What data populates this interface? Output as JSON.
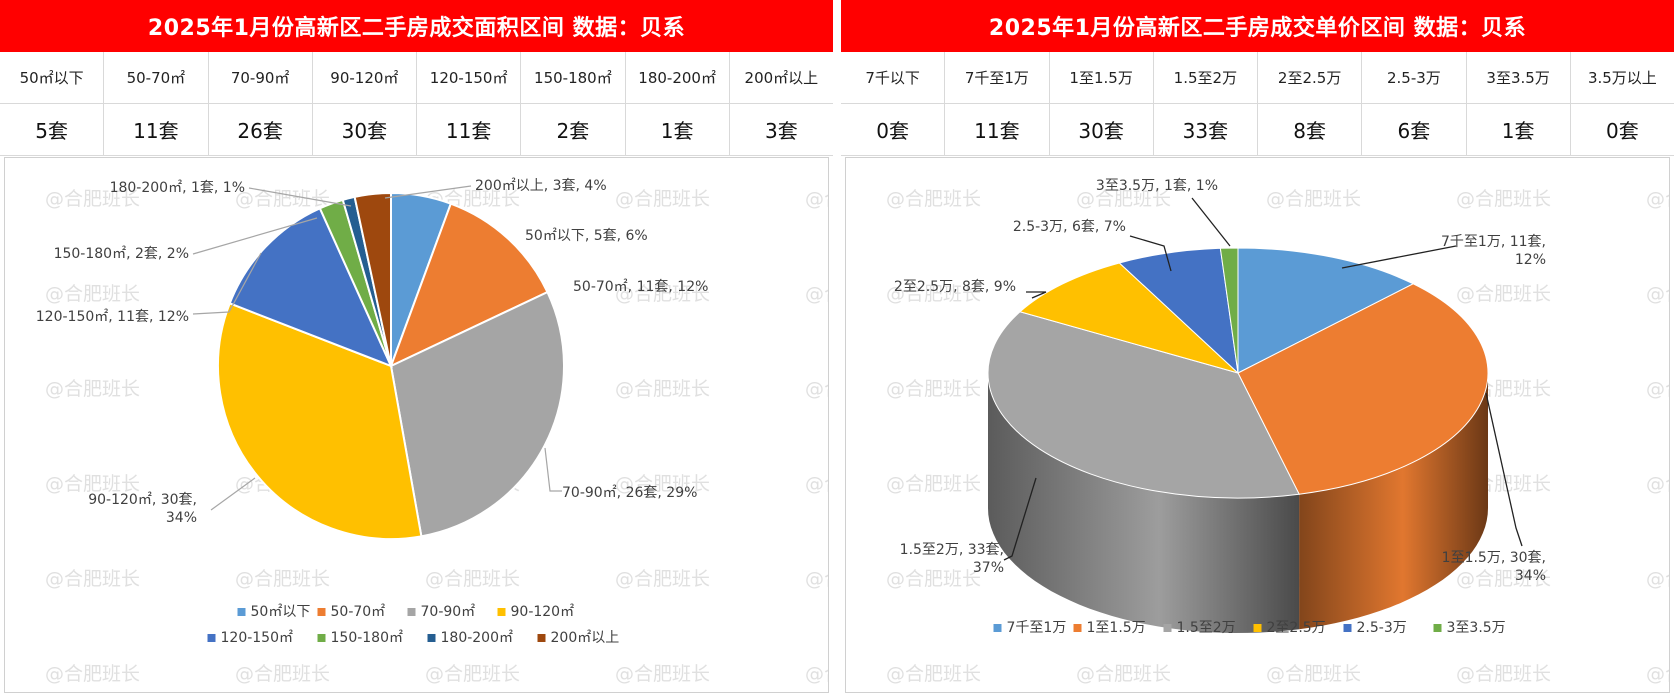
{
  "watermark": "@合肥班长",
  "left": {
    "title": "2025年1月份高新区二手房成交面积区间 数据：贝系",
    "headers": [
      "50㎡以下",
      "50-70㎡",
      "70-90㎡",
      "90-120㎡",
      "120-150㎡",
      "150-180㎡",
      "180-200㎡",
      "200㎡以上"
    ],
    "values": [
      "5套",
      "11套",
      "26套",
      "30套",
      "11套",
      "2套",
      "1套",
      "3套"
    ]
  },
  "right": {
    "title": "2025年1月份高新区二手房成交单价区间 数据：贝系",
    "headers": [
      "7千以下",
      "7千至1万",
      "1至1.5万",
      "1.5至2万",
      "2至2.5万",
      "2.5-3万",
      "3至3.5万",
      "3.5万以上"
    ],
    "values": [
      "0套",
      "11套",
      "30套",
      "33套",
      "8套",
      "6套",
      "1套",
      "0套"
    ]
  },
  "chart_data": [
    {
      "type": "pie",
      "categories": [
        "50㎡以下",
        "50-70㎡",
        "70-90㎡",
        "90-120㎡",
        "120-150㎡",
        "150-180㎡",
        "180-200㎡",
        "200㎡以上"
      ],
      "values": [
        5,
        11,
        26,
        30,
        11,
        2,
        1,
        3
      ],
      "data_labels": [
        "50㎡以下, 5套, 6%",
        "50-70㎡, 11套, 12%",
        "70-90㎡, 26套, 29%",
        "90-120㎡, 30套, 34%",
        "120-150㎡, 11套, 12%",
        "150-180㎡, 2套, 2%",
        "180-200㎡, 1套, 1%",
        "200㎡以上, 3套, 4%"
      ],
      "colors": [
        "#5b9bd5",
        "#ed7d31",
        "#a5a5a5",
        "#ffc000",
        "#4472c4",
        "#70ad47",
        "#255e91",
        "#9e480e"
      ],
      "legend_placement": "bottom"
    },
    {
      "type": "pie",
      "style": "3d",
      "categories": [
        "7千至1万",
        "1至1.5万",
        "1.5至2万",
        "2至2.5万",
        "2.5-3万",
        "3至3.5万"
      ],
      "values": [
        11,
        30,
        33,
        8,
        6,
        1
      ],
      "data_labels": [
        "7千至1万, 11套, 12%",
        "1至1.5万, 30套, 34%",
        "1.5至2万, 33套, 37%",
        "2至2.5万, 8套, 9%",
        "2.5-3万, 6套, 7%",
        "3至3.5万, 1套, 1%"
      ],
      "colors": [
        "#5b9bd5",
        "#ed7d31",
        "#a5a5a5",
        "#ffc000",
        "#4472c4",
        "#70ad47"
      ],
      "legend_placement": "bottom"
    }
  ]
}
